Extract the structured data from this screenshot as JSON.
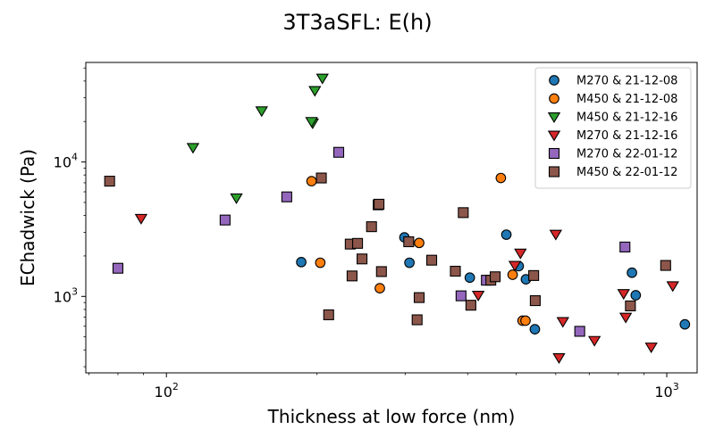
{
  "chart_data": {
    "type": "scatter",
    "title": "3T3aSFL: E(h)",
    "xlabel": "Thickness at low force (nm)",
    "ylabel": "EChadwick (Pa)",
    "xscale": "log",
    "yscale": "log",
    "xlim": [
      69,
      1150
    ],
    "ylim": [
      270,
      55000
    ],
    "xticks": [
      {
        "value": 100,
        "label": "10",
        "sup": "2"
      },
      {
        "value": 1000,
        "label": "10",
        "sup": "3"
      }
    ],
    "yticks": [
      {
        "value": 1000,
        "label": "10",
        "sup": "3"
      },
      {
        "value": 10000,
        "label": "10",
        "sup": "4"
      }
    ],
    "grid": false,
    "legend_position": "top-right",
    "series": [
      {
        "name": "M270 & 21-12-08",
        "marker": "circle",
        "color": "#1f77b4",
        "points": [
          [
            186,
            1800
          ],
          [
            299,
            2750
          ],
          [
            306,
            1780
          ],
          [
            404,
            1380
          ],
          [
            478,
            2880
          ],
          [
            506,
            1680
          ],
          [
            523,
            1340
          ],
          [
            545,
            570
          ],
          [
            852,
            1500
          ],
          [
            867,
            1020
          ],
          [
            1087,
            620
          ]
        ]
      },
      {
        "name": "M450 & 21-12-08",
        "marker": "circle",
        "color": "#ff7f0e",
        "points": [
          [
            195,
            7200
          ],
          [
            203,
            1780
          ],
          [
            267,
            1150
          ],
          [
            320,
            2500
          ],
          [
            466,
            7600
          ],
          [
            492,
            1450
          ],
          [
            515,
            660
          ],
          [
            522,
            660
          ]
        ]
      },
      {
        "name": "M450 & 21-12-16",
        "marker": "triangle-down",
        "color": "#2ca02c",
        "points": [
          [
            113,
            12800
          ],
          [
            138,
            5400
          ],
          [
            155,
            24000
          ],
          [
            196,
            19500
          ],
          [
            195,
            20000
          ],
          [
            198,
            34000
          ],
          [
            205,
            42000
          ]
        ]
      },
      {
        "name": "M270 & 21-12-16",
        "marker": "triangle-down",
        "color": "#d62728",
        "points": [
          [
            89,
            3800
          ],
          [
            420,
            1020
          ],
          [
            497,
            1700
          ],
          [
            510,
            2100
          ],
          [
            600,
            2900
          ],
          [
            609,
            350
          ],
          [
            620,
            650
          ],
          [
            717,
            470
          ],
          [
            820,
            1050
          ],
          [
            828,
            700
          ],
          [
            931,
            420
          ],
          [
            1028,
            1200
          ]
        ]
      },
      {
        "name": "M270 & 22-01-12",
        "marker": "square",
        "color": "#9467bd",
        "points": [
          [
            80,
            1620
          ],
          [
            131,
            3700
          ],
          [
            174,
            5500
          ],
          [
            221,
            11800
          ],
          [
            388,
            1010
          ],
          [
            436,
            1320
          ],
          [
            670,
            550
          ],
          [
            825,
            2330
          ]
        ]
      },
      {
        "name": "M450 & 22-01-12",
        "marker": "square",
        "color": "#8c564b",
        "points": [
          [
            77,
            7200
          ],
          [
            204,
            7600
          ],
          [
            211,
            730
          ],
          [
            233,
            2450
          ],
          [
            235,
            1420
          ],
          [
            241,
            2480
          ],
          [
            246,
            1900
          ],
          [
            257,
            3300
          ],
          [
            265,
            4800
          ],
          [
            266,
            4850
          ],
          [
            269,
            1530
          ],
          [
            305,
            2550
          ],
          [
            317,
            670
          ],
          [
            320,
            980
          ],
          [
            339,
            1860
          ],
          [
            378,
            1540
          ],
          [
            392,
            4200
          ],
          [
            406,
            860
          ],
          [
            445,
            1320
          ],
          [
            454,
            1400
          ],
          [
            542,
            1430
          ],
          [
            546,
            930
          ],
          [
            846,
            850
          ],
          [
            995,
            1700
          ]
        ]
      }
    ]
  }
}
